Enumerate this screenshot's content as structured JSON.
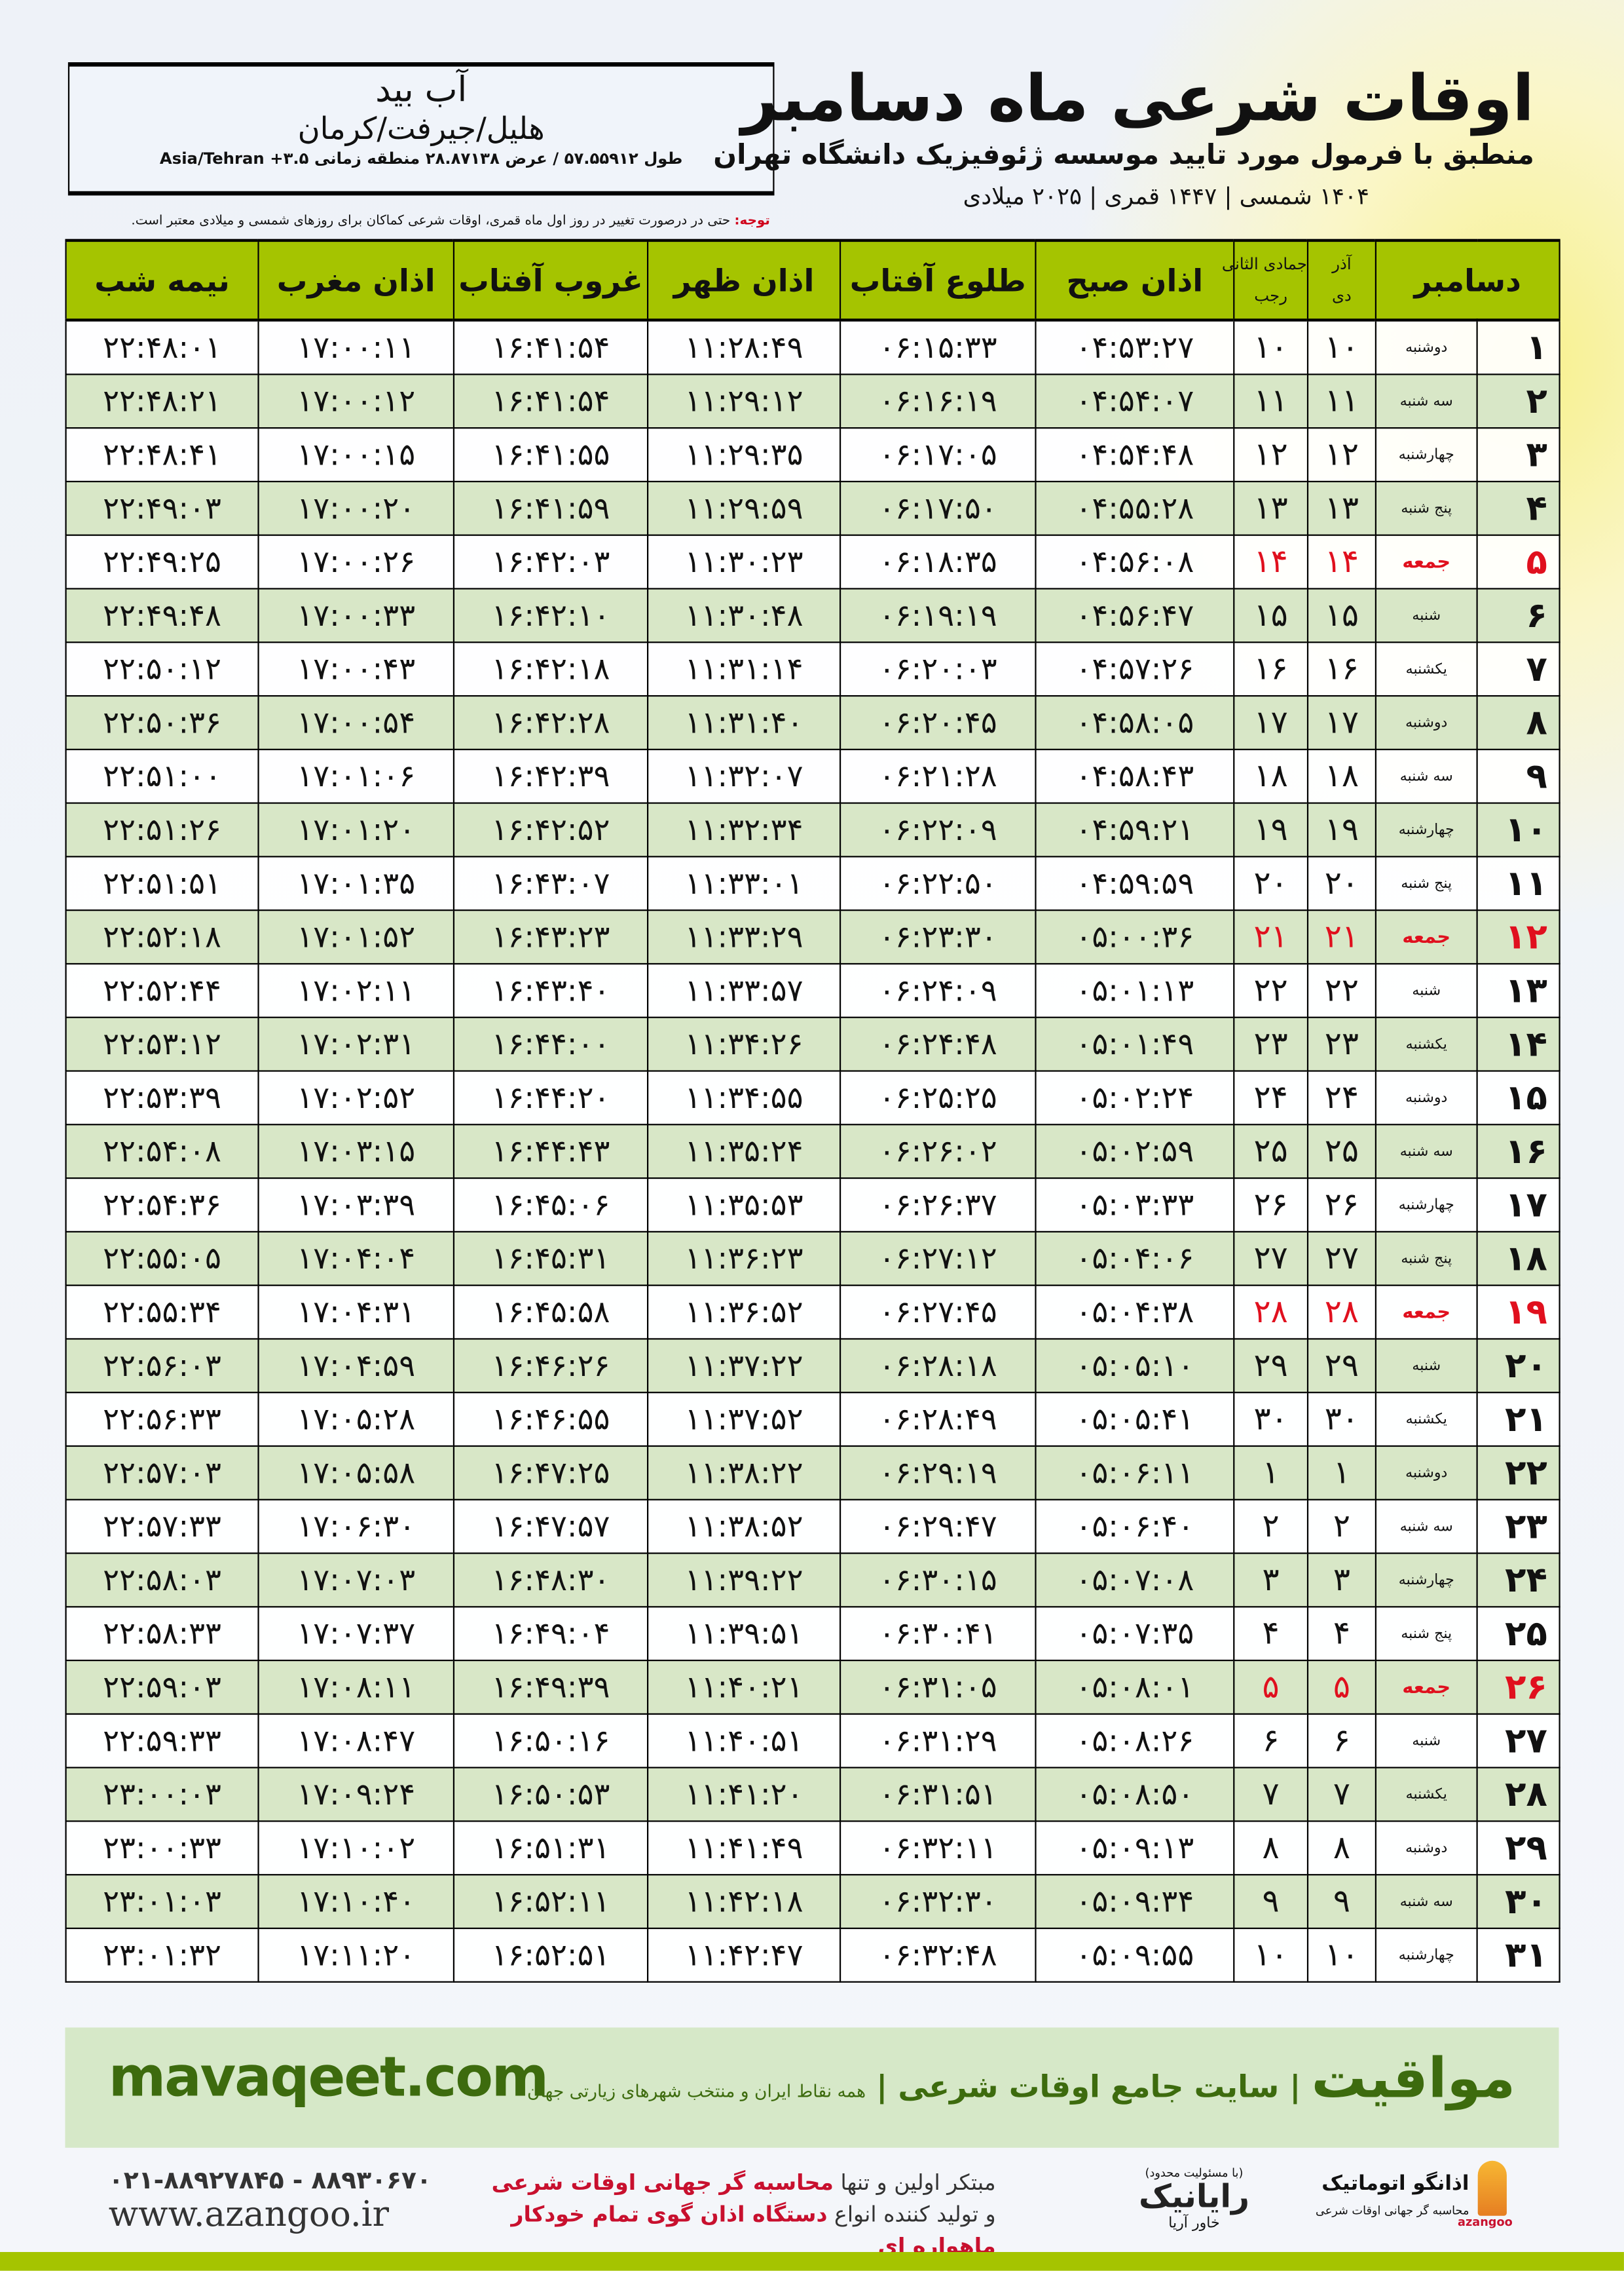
{
  "header": {
    "title": "اوقات شرعی ماه دسامبر",
    "subtitle": "منطبق با فرمول مورد تایید موسسه ژئوفیزیک دانشگاه تهران",
    "dateline": "۱۴۰۴ شمسی | ۱۴۴۷ قمری | ۲۰۲۵ میلادی",
    "note_label": "توجه:",
    "note_text": " حتی در درصورت تغییر در روز اول ماه قمری، اوقات شرعی کماکان برای روزهای شمسی و میلادی معتبر است."
  },
  "location": {
    "city": "آب بید",
    "region": "هلیل/جیرفت/کرمان",
    "coords": "طول ۵۷.۵۵۹۱۲ / عرض ۲۸.۸۷۱۳۸ منطقه زمانی ۳.۵+ Asia/Tehran"
  },
  "table": {
    "columns": {
      "month": "دسامبر",
      "dey_top": "آذر",
      "dey_bottom": "دی",
      "hijri_top": "جمادی الثانی",
      "hijri_bottom": "رجب",
      "sobh": "اذان صبح",
      "tolu": "طلوع آفتاب",
      "zohr": "اذان ظهر",
      "ghorub": "غروب آفتاب",
      "maghrib": "اذان مغرب",
      "nimeh": "نیمه شب"
    },
    "friday_color": "#e0101e",
    "header_color": "#a5c400",
    "rows": [
      [
        "۱",
        "دوشنبه",
        "۱۰",
        "۱۰",
        "۰۴:۵۳:۲۷",
        "۰۶:۱۵:۳۳",
        "۱۱:۲۸:۴۹",
        "۱۶:۴۱:۵۴",
        "۱۷:۰۰:۱۱",
        "۲۲:۴۸:۰۱"
      ],
      [
        "۲",
        "سه شنبه",
        "۱۱",
        "۱۱",
        "۰۴:۵۴:۰۷",
        "۰۶:۱۶:۱۹",
        "۱۱:۲۹:۱۲",
        "۱۶:۴۱:۵۴",
        "۱۷:۰۰:۱۲",
        "۲۲:۴۸:۲۱"
      ],
      [
        "۳",
        "چهارشنبه",
        "۱۲",
        "۱۲",
        "۰۴:۵۴:۴۸",
        "۰۶:۱۷:۰۵",
        "۱۱:۲۹:۳۵",
        "۱۶:۴۱:۵۵",
        "۱۷:۰۰:۱۵",
        "۲۲:۴۸:۴۱"
      ],
      [
        "۴",
        "پنج شنبه",
        "۱۳",
        "۱۳",
        "۰۴:۵۵:۲۸",
        "۰۶:۱۷:۵۰",
        "۱۱:۲۹:۵۹",
        "۱۶:۴۱:۵۹",
        "۱۷:۰۰:۲۰",
        "۲۲:۴۹:۰۳"
      ],
      [
        "۵",
        "جمعه",
        "۱۴",
        "۱۴",
        "۰۴:۵۶:۰۸",
        "۰۶:۱۸:۳۵",
        "۱۱:۳۰:۲۳",
        "۱۶:۴۲:۰۳",
        "۱۷:۰۰:۲۶",
        "۲۲:۴۹:۲۵"
      ],
      [
        "۶",
        "شنبه",
        "۱۵",
        "۱۵",
        "۰۴:۵۶:۴۷",
        "۰۶:۱۹:۱۹",
        "۱۱:۳۰:۴۸",
        "۱۶:۴۲:۱۰",
        "۱۷:۰۰:۳۳",
        "۲۲:۴۹:۴۸"
      ],
      [
        "۷",
        "یکشنبه",
        "۱۶",
        "۱۶",
        "۰۴:۵۷:۲۶",
        "۰۶:۲۰:۰۳",
        "۱۱:۳۱:۱۴",
        "۱۶:۴۲:۱۸",
        "۱۷:۰۰:۴۳",
        "۲۲:۵۰:۱۲"
      ],
      [
        "۸",
        "دوشنبه",
        "۱۷",
        "۱۷",
        "۰۴:۵۸:۰۵",
        "۰۶:۲۰:۴۵",
        "۱۱:۳۱:۴۰",
        "۱۶:۴۲:۲۸",
        "۱۷:۰۰:۵۴",
        "۲۲:۵۰:۳۶"
      ],
      [
        "۹",
        "سه شنبه",
        "۱۸",
        "۱۸",
        "۰۴:۵۸:۴۳",
        "۰۶:۲۱:۲۸",
        "۱۱:۳۲:۰۷",
        "۱۶:۴۲:۳۹",
        "۱۷:۰۱:۰۶",
        "۲۲:۵۱:۰۰"
      ],
      [
        "۱۰",
        "چهارشنبه",
        "۱۹",
        "۱۹",
        "۰۴:۵۹:۲۱",
        "۰۶:۲۲:۰۹",
        "۱۱:۳۲:۳۴",
        "۱۶:۴۲:۵۲",
        "۱۷:۰۱:۲۰",
        "۲۲:۵۱:۲۶"
      ],
      [
        "۱۱",
        "پنج شنبه",
        "۲۰",
        "۲۰",
        "۰۴:۵۹:۵۹",
        "۰۶:۲۲:۵۰",
        "۱۱:۳۳:۰۱",
        "۱۶:۴۳:۰۷",
        "۱۷:۰۱:۳۵",
        "۲۲:۵۱:۵۱"
      ],
      [
        "۱۲",
        "جمعه",
        "۲۱",
        "۲۱",
        "۰۵:۰۰:۳۶",
        "۰۶:۲۳:۳۰",
        "۱۱:۳۳:۲۹",
        "۱۶:۴۳:۲۳",
        "۱۷:۰۱:۵۲",
        "۲۲:۵۲:۱۸"
      ],
      [
        "۱۳",
        "شنبه",
        "۲۲",
        "۲۲",
        "۰۵:۰۱:۱۳",
        "۰۶:۲۴:۰۹",
        "۱۱:۳۳:۵۷",
        "۱۶:۴۳:۴۰",
        "۱۷:۰۲:۱۱",
        "۲۲:۵۲:۴۴"
      ],
      [
        "۱۴",
        "یکشنبه",
        "۲۳",
        "۲۳",
        "۰۵:۰۱:۴۹",
        "۰۶:۲۴:۴۸",
        "۱۱:۳۴:۲۶",
        "۱۶:۴۴:۰۰",
        "۱۷:۰۲:۳۱",
        "۲۲:۵۳:۱۲"
      ],
      [
        "۱۵",
        "دوشنبه",
        "۲۴",
        "۲۴",
        "۰۵:۰۲:۲۴",
        "۰۶:۲۵:۲۵",
        "۱۱:۳۴:۵۵",
        "۱۶:۴۴:۲۰",
        "۱۷:۰۲:۵۲",
        "۲۲:۵۳:۳۹"
      ],
      [
        "۱۶",
        "سه شنبه",
        "۲۵",
        "۲۵",
        "۰۵:۰۲:۵۹",
        "۰۶:۲۶:۰۲",
        "۱۱:۳۵:۲۴",
        "۱۶:۴۴:۴۳",
        "۱۷:۰۳:۱۵",
        "۲۲:۵۴:۰۸"
      ],
      [
        "۱۷",
        "چهارشنبه",
        "۲۶",
        "۲۶",
        "۰۵:۰۳:۳۳",
        "۰۶:۲۶:۳۷",
        "۱۱:۳۵:۵۳",
        "۱۶:۴۵:۰۶",
        "۱۷:۰۳:۳۹",
        "۲۲:۵۴:۳۶"
      ],
      [
        "۱۸",
        "پنج شنبه",
        "۲۷",
        "۲۷",
        "۰۵:۰۴:۰۶",
        "۰۶:۲۷:۱۲",
        "۱۱:۳۶:۲۳",
        "۱۶:۴۵:۳۱",
        "۱۷:۰۴:۰۴",
        "۲۲:۵۵:۰۵"
      ],
      [
        "۱۹",
        "جمعه",
        "۲۸",
        "۲۸",
        "۰۵:۰۴:۳۸",
        "۰۶:۲۷:۴۵",
        "۱۱:۳۶:۵۲",
        "۱۶:۴۵:۵۸",
        "۱۷:۰۴:۳۱",
        "۲۲:۵۵:۳۴"
      ],
      [
        "۲۰",
        "شنبه",
        "۲۹",
        "۲۹",
        "۰۵:۰۵:۱۰",
        "۰۶:۲۸:۱۸",
        "۱۱:۳۷:۲۲",
        "۱۶:۴۶:۲۶",
        "۱۷:۰۴:۵۹",
        "۲۲:۵۶:۰۳"
      ],
      [
        "۲۱",
        "یکشنبه",
        "۳۰",
        "۳۰",
        "۰۵:۰۵:۴۱",
        "۰۶:۲۸:۴۹",
        "۱۱:۳۷:۵۲",
        "۱۶:۴۶:۵۵",
        "۱۷:۰۵:۲۸",
        "۲۲:۵۶:۳۳"
      ],
      [
        "۲۲",
        "دوشنبه",
        "۱",
        "۱",
        "۰۵:۰۶:۱۱",
        "۰۶:۲۹:۱۹",
        "۱۱:۳۸:۲۲",
        "۱۶:۴۷:۲۵",
        "۱۷:۰۵:۵۸",
        "۲۲:۵۷:۰۳"
      ],
      [
        "۲۳",
        "سه شنبه",
        "۲",
        "۲",
        "۰۵:۰۶:۴۰",
        "۰۶:۲۹:۴۷",
        "۱۱:۳۸:۵۲",
        "۱۶:۴۷:۵۷",
        "۱۷:۰۶:۳۰",
        "۲۲:۵۷:۳۳"
      ],
      [
        "۲۴",
        "چهارشنبه",
        "۳",
        "۳",
        "۰۵:۰۷:۰۸",
        "۰۶:۳۰:۱۵",
        "۱۱:۳۹:۲۲",
        "۱۶:۴۸:۳۰",
        "۱۷:۰۷:۰۳",
        "۲۲:۵۸:۰۳"
      ],
      [
        "۲۵",
        "پنج شنبه",
        "۴",
        "۴",
        "۰۵:۰۷:۳۵",
        "۰۶:۳۰:۴۱",
        "۱۱:۳۹:۵۱",
        "۱۶:۴۹:۰۴",
        "۱۷:۰۷:۳۷",
        "۲۲:۵۸:۳۳"
      ],
      [
        "۲۶",
        "جمعه",
        "۵",
        "۵",
        "۰۵:۰۸:۰۱",
        "۰۶:۳۱:۰۵",
        "۱۱:۴۰:۲۱",
        "۱۶:۴۹:۳۹",
        "۱۷:۰۸:۱۱",
        "۲۲:۵۹:۰۳"
      ],
      [
        "۲۷",
        "شنبه",
        "۶",
        "۶",
        "۰۵:۰۸:۲۶",
        "۰۶:۳۱:۲۹",
        "۱۱:۴۰:۵۱",
        "۱۶:۵۰:۱۶",
        "۱۷:۰۸:۴۷",
        "۲۲:۵۹:۳۳"
      ],
      [
        "۲۸",
        "یکشنبه",
        "۷",
        "۷",
        "۰۵:۰۸:۵۰",
        "۰۶:۳۱:۵۱",
        "۱۱:۴۱:۲۰",
        "۱۶:۵۰:۵۳",
        "۱۷:۰۹:۲۴",
        "۲۳:۰۰:۰۳"
      ],
      [
        "۲۹",
        "دوشنبه",
        "۸",
        "۸",
        "۰۵:۰۹:۱۳",
        "۰۶:۳۲:۱۱",
        "۱۱:۴۱:۴۹",
        "۱۶:۵۱:۳۱",
        "۱۷:۱۰:۰۲",
        "۲۳:۰۰:۳۳"
      ],
      [
        "۳۰",
        "سه شنبه",
        "۹",
        "۹",
        "۰۵:۰۹:۳۴",
        "۰۶:۳۲:۳۰",
        "۱۱:۴۲:۱۸",
        "۱۶:۵۲:۱۱",
        "۱۷:۱۰:۴۰",
        "۲۳:۰۱:۰۳"
      ],
      [
        "۳۱",
        "چهارشنبه",
        "۱۰",
        "۱۰",
        "۰۵:۰۹:۵۵",
        "۰۶:۳۲:۴۸",
        "۱۱:۴۲:۴۷",
        "۱۶:۵۲:۵۱",
        "۱۷:۱۱:۲۰",
        "۲۳:۰۱:۳۲"
      ]
    ]
  },
  "footer": {
    "site": "mavaqeet.com",
    "brand": "مواقیت",
    "brand_tagline": " | سایت جامع اوقات شرعی | ",
    "brand_sub": "همه نقاط ایران و منتخب شهرهای زیارتی جهان",
    "phone": "۰۲۱-۸۸۹۲۷۸۴۵ - ۸۸۹۳۰۶۷۰",
    "web": "www.azangoo.ir",
    "promo_1a": "مبتکر اولین و تنها ",
    "promo_1b": "محاسبه گر جهانی اوقات شرعی",
    "promo_2a": "و تولید کننده انواع ",
    "promo_2b": "دستگاه اذان گوی تمام خودکار ماهواره ای",
    "rayanik_tag": "(با مسئولیت محدود)",
    "rayanik_name": "رایانیک",
    "rayanik_sub": "خاور آریا",
    "azangoo_name": "اذانگو اتوماتیک",
    "azangoo_sub": "محاسبه گر جهانی اوقات شرعی",
    "azangoo_en": "azangoo",
    "accent_color": "#3d6b0e",
    "bar_color": "#a5c400"
  }
}
